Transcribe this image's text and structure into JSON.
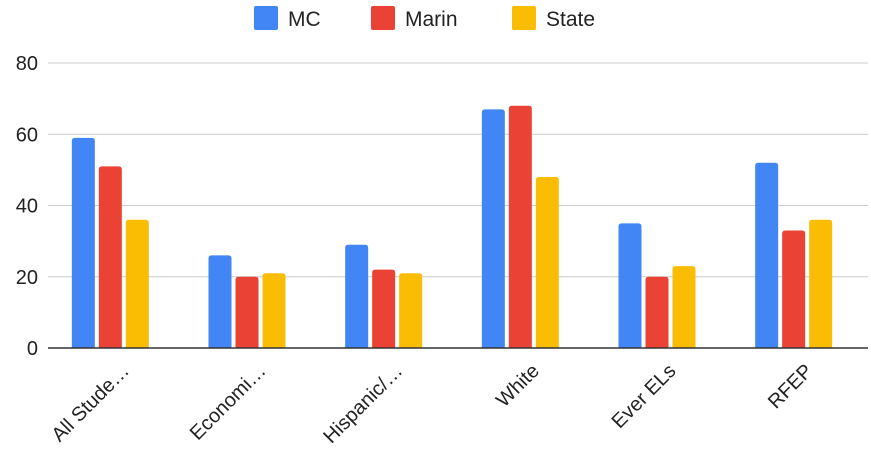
{
  "chart_data": {
    "type": "bar",
    "categories": [
      "All Stude…",
      "Economi…",
      "Hispanic/…",
      "White",
      "Ever ELs",
      "RFEP"
    ],
    "series": [
      {
        "name": "MC",
        "color": "#4285f4",
        "values": [
          59,
          26,
          29,
          67,
          35,
          52
        ]
      },
      {
        "name": "Marin",
        "color": "#ea4335",
        "values": [
          51,
          20,
          22,
          68,
          20,
          33
        ]
      },
      {
        "name": "State",
        "color": "#fbbc04",
        "values": [
          36,
          21,
          21,
          48,
          23,
          36
        ]
      }
    ],
    "ylim": [
      0,
      80
    ],
    "yticks": [
      0,
      20,
      40,
      60,
      80
    ],
    "title": "",
    "xlabel": "",
    "ylabel": "",
    "grid": true,
    "legend_position": "top-center"
  }
}
